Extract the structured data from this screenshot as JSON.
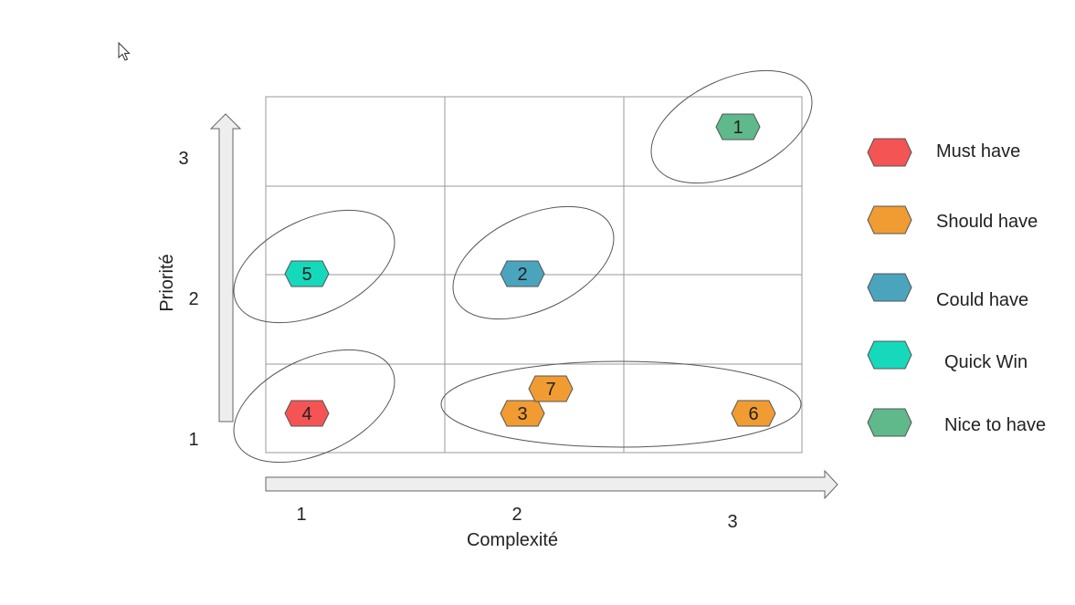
{
  "axes": {
    "y_label": "Priorité",
    "x_label": "Complexité",
    "y_ticks": [
      "1",
      "2",
      "3"
    ],
    "x_ticks": [
      "1",
      "2",
      "3"
    ]
  },
  "legend": [
    {
      "label": "Must have",
      "color": "#f55454"
    },
    {
      "label": "Should have",
      "color": "#f09c33"
    },
    {
      "label": "Could have",
      "color": "#4ba4bd"
    },
    {
      "label": "Quick Win",
      "color": "#16d9bc"
    },
    {
      "label": "Nice to have",
      "color": "#5fb98a"
    }
  ],
  "items": [
    {
      "id": "1",
      "category": "Nice to have",
      "complexity": 3,
      "priority": 3
    },
    {
      "id": "2",
      "category": "Could have",
      "complexity": 2,
      "priority": 2
    },
    {
      "id": "3",
      "category": "Should have",
      "complexity": 2,
      "priority": 1
    },
    {
      "id": "4",
      "category": "Must have",
      "complexity": 1,
      "priority": 1
    },
    {
      "id": "5",
      "category": "Quick Win",
      "complexity": 1,
      "priority": 2
    },
    {
      "id": "6",
      "category": "Should have",
      "complexity": 3,
      "priority": 1
    },
    {
      "id": "7",
      "category": "Should have",
      "complexity": 2,
      "priority": 1
    }
  ],
  "groups": [
    {
      "members": [
        "1"
      ]
    },
    {
      "members": [
        "5"
      ]
    },
    {
      "members": [
        "2"
      ]
    },
    {
      "members": [
        "4"
      ]
    },
    {
      "members": [
        "3",
        "7",
        "6"
      ]
    }
  ],
  "cursor": "arrow-cursor-icon"
}
